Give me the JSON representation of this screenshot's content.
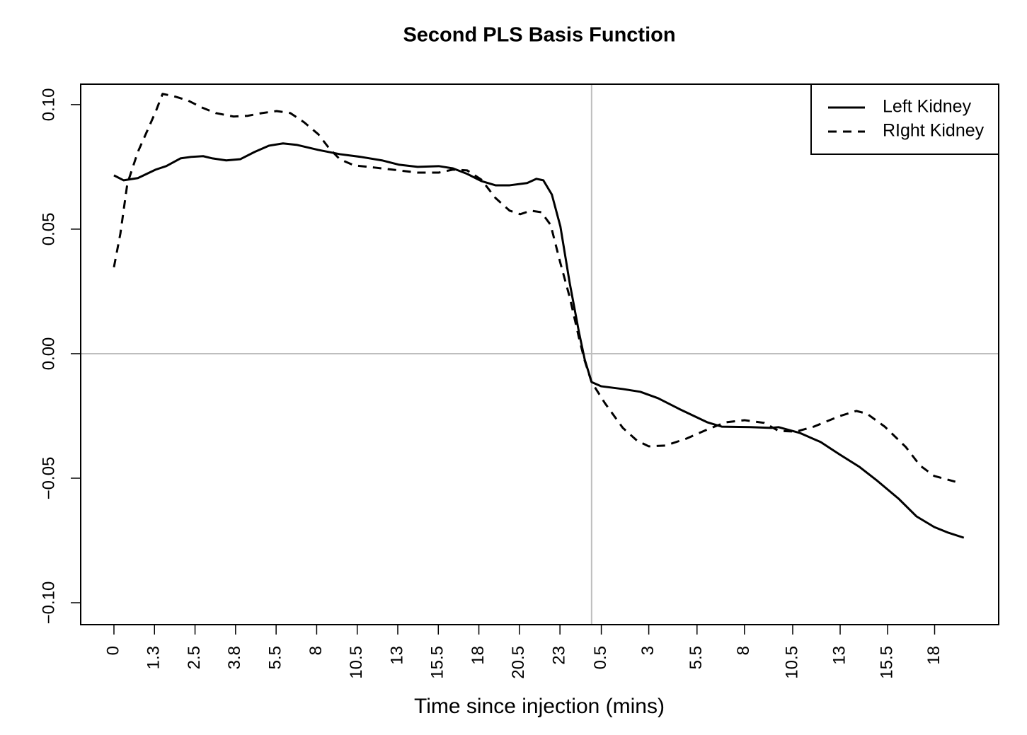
{
  "chart_data": {
    "type": "line",
    "title": "Second PLS Basis Function",
    "xlabel": "Time since injection (mins)",
    "xlim": [
      -0.82,
      21.82
    ],
    "ylim": [
      -0.1088,
      0.1082
    ],
    "xticks": [
      {
        "value": 0,
        "label": "0"
      },
      {
        "value": 1,
        "label": "1.3"
      },
      {
        "value": 2,
        "label": "2.5"
      },
      {
        "value": 3,
        "label": "3.8"
      },
      {
        "value": 4,
        "label": "5.5"
      },
      {
        "value": 5,
        "label": "8"
      },
      {
        "value": 6,
        "label": "10.5"
      },
      {
        "value": 7,
        "label": "13"
      },
      {
        "value": 8,
        "label": "15.5"
      },
      {
        "value": 9,
        "label": "18"
      },
      {
        "value": 10,
        "label": "20.5"
      },
      {
        "value": 11,
        "label": "23"
      },
      {
        "value": 12.02,
        "label": "0.5"
      },
      {
        "value": 13.19,
        "label": "3"
      },
      {
        "value": 14.38,
        "label": "5.5"
      },
      {
        "value": 15.55,
        "label": "8"
      },
      {
        "value": 16.74,
        "label": "10.5"
      },
      {
        "value": 17.91,
        "label": "13"
      },
      {
        "value": 19.08,
        "label": "15.5"
      },
      {
        "value": 20.24,
        "label": "18"
      }
    ],
    "yticks": [
      {
        "value": -0.1,
        "label": "−0.10"
      },
      {
        "value": -0.05,
        "label": "−0.05"
      },
      {
        "value": 0,
        "label": "0.00"
      },
      {
        "value": 0.05,
        "label": "0.05"
      },
      {
        "value": 0.1,
        "label": "0.10"
      }
    ],
    "vlines": [
      11.78
    ],
    "hlines": [
      0
    ],
    "reference_line_color": "#bebebe",
    "legend": "topright",
    "series": [
      {
        "name": "Left Kidney",
        "color": "#000000",
        "dash": "solid",
        "x": [
          0,
          0.24,
          0.59,
          1.03,
          1.29,
          1.64,
          1.9,
          2.2,
          2.43,
          2.77,
          3.12,
          3.47,
          3.82,
          4.17,
          4.52,
          5.04,
          5.57,
          6.09,
          6.61,
          7.02,
          7.49,
          8.01,
          8.36,
          8.71,
          9.06,
          9.41,
          9.76,
          10.19,
          10.42,
          10.59,
          10.8,
          11.01,
          11.24,
          11.47,
          11.61,
          11.78,
          12.02,
          12.55,
          12.98,
          13.42,
          13.94,
          14.64,
          14.99,
          15.69,
          16.21,
          16.39,
          16.91,
          17.43,
          17.91,
          18.39,
          18.83,
          19.35,
          19.79,
          20.23,
          20.58,
          20.96
        ],
        "values": [
          0.0716,
          0.0696,
          0.0705,
          0.0739,
          0.0753,
          0.0784,
          0.079,
          0.0793,
          0.0784,
          0.0776,
          0.0781,
          0.081,
          0.0835,
          0.0844,
          0.0838,
          0.0818,
          0.0801,
          0.079,
          0.0776,
          0.0759,
          0.075,
          0.0753,
          0.0744,
          0.0722,
          0.0693,
          0.0676,
          0.0676,
          0.0685,
          0.0702,
          0.0696,
          0.0639,
          0.0511,
          0.0284,
          0.0085,
          -0.0023,
          -0.0114,
          -0.0131,
          -0.0142,
          -0.0153,
          -0.0179,
          -0.0222,
          -0.0276,
          -0.0293,
          -0.0295,
          -0.0298,
          -0.0295,
          -0.0318,
          -0.0355,
          -0.0406,
          -0.0455,
          -0.0511,
          -0.0582,
          -0.0653,
          -0.0696,
          -0.0719,
          -0.0739
        ]
      },
      {
        "name": "RIght Kidney",
        "color": "#000000",
        "dash": "dashed",
        "x": [
          0,
          0.16,
          0.33,
          0.59,
          0.86,
          1.03,
          1.2,
          1.47,
          1.82,
          2.16,
          2.51,
          2.95,
          3.3,
          3.65,
          4.01,
          4.35,
          4.69,
          5.04,
          5.31,
          5.57,
          5.92,
          6.44,
          7.02,
          7.49,
          8.01,
          8.36,
          8.71,
          9.06,
          9.41,
          9.76,
          10.02,
          10.28,
          10.54,
          10.77,
          11.01,
          11.24,
          11.47,
          11.61,
          11.78,
          12.11,
          12.55,
          12.9,
          13.19,
          13.6,
          14.12,
          14.64,
          15.08,
          15.55,
          16.04,
          16.39,
          16.82,
          17.26,
          17.91,
          18.31,
          18.57,
          19.01,
          19.53,
          19.88,
          20.23,
          20.75
        ],
        "values": [
          0.0347,
          0.0483,
          0.0682,
          0.081,
          0.0909,
          0.0972,
          0.1043,
          0.1034,
          0.1017,
          0.0989,
          0.0966,
          0.0952,
          0.0955,
          0.0966,
          0.0974,
          0.0966,
          0.0929,
          0.0881,
          0.0824,
          0.0781,
          0.0756,
          0.0747,
          0.0736,
          0.0727,
          0.0727,
          0.0739,
          0.0736,
          0.0699,
          0.0625,
          0.0574,
          0.056,
          0.0574,
          0.0568,
          0.0517,
          0.0364,
          0.0227,
          0.0063,
          -0.0028,
          -0.0114,
          -0.0199,
          -0.0298,
          -0.0349,
          -0.0372,
          -0.0369,
          -0.0341,
          -0.0304,
          -0.0276,
          -0.0267,
          -0.0278,
          -0.031,
          -0.0313,
          -0.0293,
          -0.025,
          -0.023,
          -0.0241,
          -0.0293,
          -0.0375,
          -0.0449,
          -0.0491,
          -0.0514
        ]
      }
    ]
  }
}
